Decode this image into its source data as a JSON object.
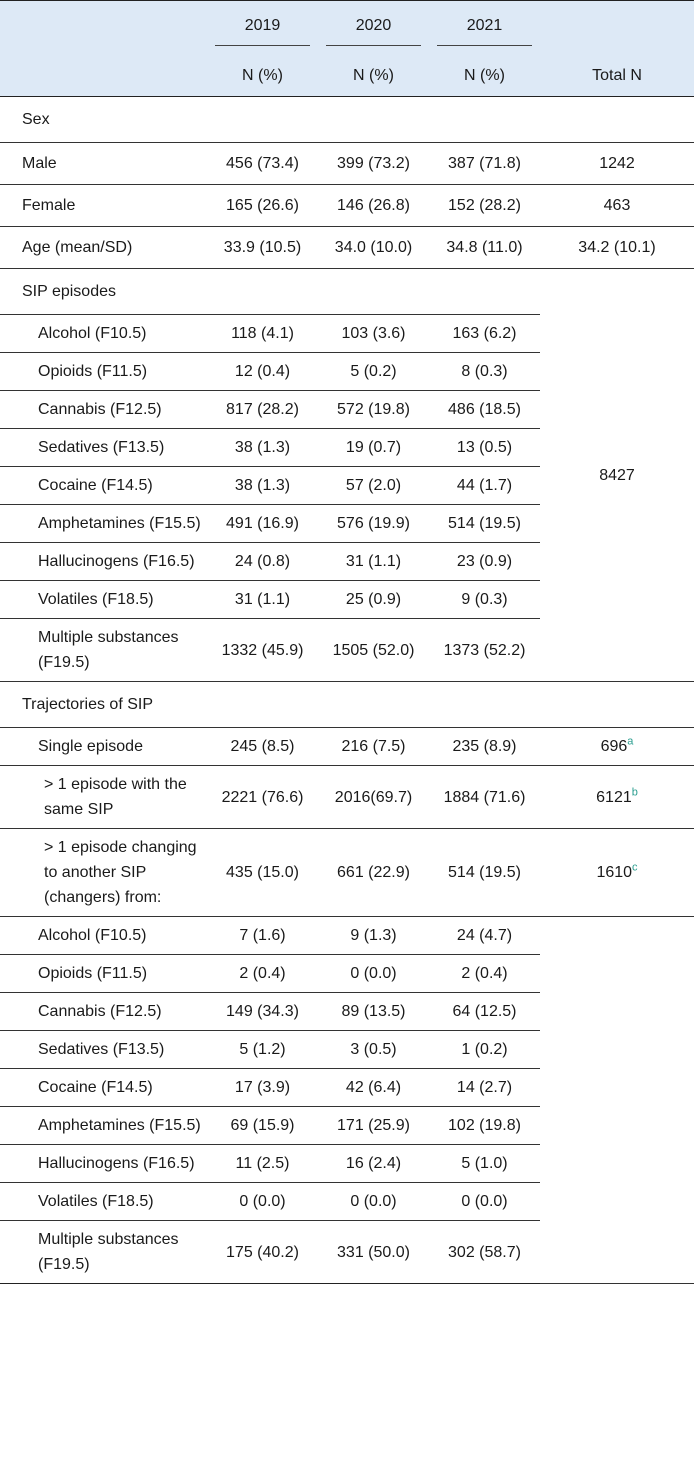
{
  "header": {
    "years": [
      "2019",
      "2020",
      "2021"
    ],
    "unit": "N (%)",
    "total": "Total N"
  },
  "demographics": {
    "sex_label": "Sex",
    "rows": [
      {
        "label": "Male",
        "v2019": "456 (73.4)",
        "v2020": "399 (73.2)",
        "v2021": "387 (71.8)",
        "total": "1242"
      },
      {
        "label": "Female",
        "v2019": "165 (26.6)",
        "v2020": "146 (26.8)",
        "v2021": "152 (28.2)",
        "total": "463"
      },
      {
        "label": "Age (mean/SD)",
        "v2019": "33.9 (10.5)",
        "v2020": "34.0 (10.0)",
        "v2021": "34.8 (11.0)",
        "total": "34.2 (10.1)"
      }
    ]
  },
  "episodes": {
    "label": "SIP episodes",
    "total": "8427",
    "rows": [
      {
        "label": "Alcohol (F10.5)",
        "v2019": "118 (4.1)",
        "v2020": "103 (3.6)",
        "v2021": "163 (6.2)"
      },
      {
        "label": "Opioids (F11.5)",
        "v2019": "12 (0.4)",
        "v2020": "5 (0.2)",
        "v2021": "8 (0.3)"
      },
      {
        "label": "Cannabis (F12.5)",
        "v2019": "817 (28.2)",
        "v2020": "572 (19.8)",
        "v2021": "486 (18.5)"
      },
      {
        "label": "Sedatives (F13.5)",
        "v2019": "38 (1.3)",
        "v2020": "19 (0.7)",
        "v2021": "13 (0.5)"
      },
      {
        "label": "Cocaine (F14.5)",
        "v2019": "38 (1.3)",
        "v2020": "57 (2.0)",
        "v2021": "44 (1.7)"
      },
      {
        "label": "Amphetamines (F15.5)",
        "v2019": "491 (16.9)",
        "v2020": "576 (19.9)",
        "v2021": "514 (19.5)"
      },
      {
        "label": "Hallucinogens (F16.5)",
        "v2019": "24 (0.8)",
        "v2020": "31 (1.1)",
        "v2021": "23 (0.9)"
      },
      {
        "label": "Volatiles (F18.5)",
        "v2019": "31 (1.1)",
        "v2020": "25 (0.9)",
        "v2021": "9 (0.3)"
      },
      {
        "label": "Multiple substances (F19.5)",
        "v2019": "1332 (45.9)",
        "v2020": "1505 (52.0)",
        "v2021": "1373 (52.2)"
      }
    ]
  },
  "trajectories": {
    "label": "Trajectories of SIP",
    "rows": [
      {
        "label": "Single episode",
        "v2019": "245 (8.5)",
        "v2020": "216 (7.5)",
        "v2021": "235 (8.9)",
        "total": "696",
        "fn": "a"
      },
      {
        "label": "> 1 episode with the same SIP",
        "v2019": "2221 (76.6)",
        "v2020": "2016(69.7)",
        "v2021": "1884 (71.6)",
        "total": "6121",
        "fn": "b"
      },
      {
        "label": "> 1 episode changing to another SIP (changers) from:",
        "v2019": "435 (15.0)",
        "v2020": "661 (22.9)",
        "v2021": "514 (19.5)",
        "total": "1610",
        "fn": "c"
      }
    ]
  },
  "changers": {
    "rows": [
      {
        "label": "Alcohol (F10.5)",
        "v2019": "7 (1.6)",
        "v2020": "9 (1.3)",
        "v2021": "24 (4.7)"
      },
      {
        "label": "Opioids (F11.5)",
        "v2019": "2 (0.4)",
        "v2020": "0 (0.0)",
        "v2021": "2 (0.4)"
      },
      {
        "label": "Cannabis (F12.5)",
        "v2019": "149 (34.3)",
        "v2020": "89 (13.5)",
        "v2021": "64 (12.5)"
      },
      {
        "label": "Sedatives (F13.5)",
        "v2019": "5 (1.2)",
        "v2020": "3 (0.5)",
        "v2021": "1 (0.2)"
      },
      {
        "label": "Cocaine (F14.5)",
        "v2019": "17 (3.9)",
        "v2020": "42 (6.4)",
        "v2021": "14 (2.7)"
      },
      {
        "label": "Amphetamines (F15.5)",
        "v2019": "69 (15.9)",
        "v2020": "171 (25.9)",
        "v2021": "102 (19.8)"
      },
      {
        "label": "Hallucinogens (F16.5)",
        "v2019": "11 (2.5)",
        "v2020": "16 (2.4)",
        "v2021": "5 (1.0)"
      },
      {
        "label": "Volatiles (F18.5)",
        "v2019": "0 (0.0)",
        "v2020": "0 (0.0)",
        "v2021": "0 (0.0)"
      },
      {
        "label": "Multiple substances (F19.5)",
        "v2019": "175 (40.2)",
        "v2020": "331 (50.0)",
        "v2021": "302 (58.7)"
      }
    ]
  }
}
